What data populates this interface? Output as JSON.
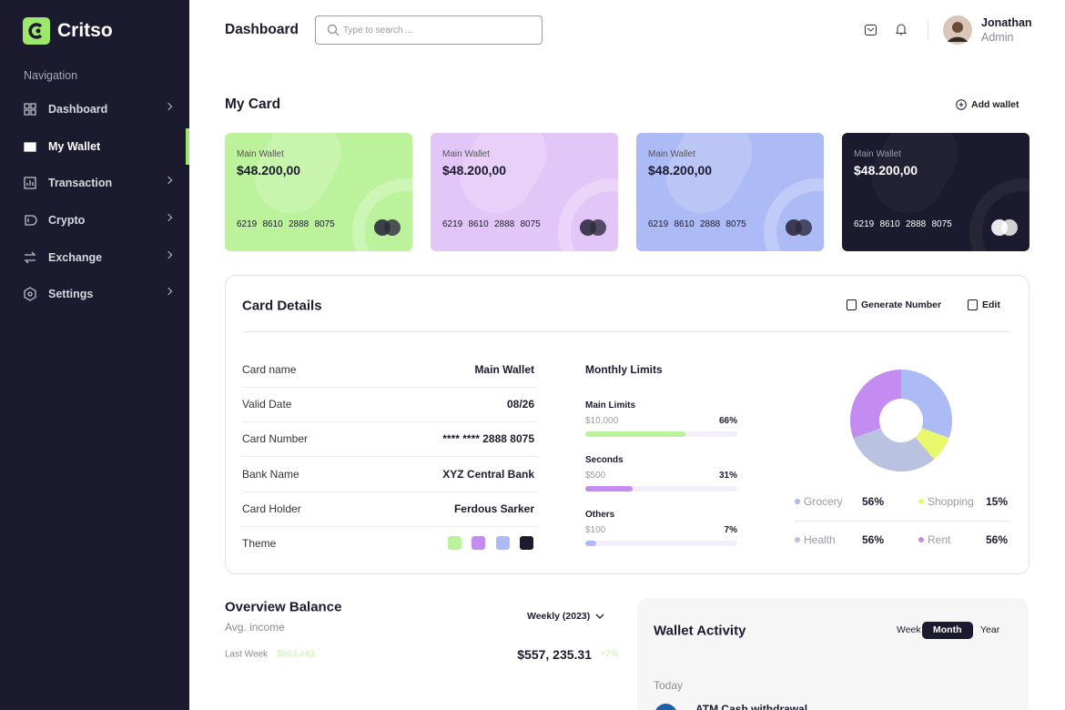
{
  "brand": "Critso",
  "nav": {
    "heading": "Navigation",
    "active": 1,
    "items": [
      "Dashboard",
      "My Wallet",
      "Transaction",
      "Crypto",
      "Exchange",
      "Settings"
    ]
  },
  "header": {
    "title": "Dashboard",
    "search_placeholder": "Type to search ...",
    "user": {
      "name": "Jonathan",
      "role": "Admin"
    }
  },
  "my_card": {
    "title": "My Card",
    "add_wallet": "Add wallet",
    "cards": [
      {
        "label": "Main Wallet",
        "balance": "$48.200,00",
        "number": [
          "6219",
          "8610",
          "2888",
          "8075"
        ],
        "color": "#bcf29c",
        "dark": false
      },
      {
        "label": "Main Wallet",
        "balance": "$48.200,00",
        "number": [
          "6219",
          "8610",
          "2888",
          "8075"
        ],
        "color": "#e3c6f8",
        "dark": false
      },
      {
        "label": "Main Wallet",
        "balance": "$48.200,00",
        "number": [
          "6219",
          "8610",
          "2888",
          "8075"
        ],
        "color": "#acbaf6",
        "dark": false
      },
      {
        "label": "Main Wallet",
        "balance": "$48.200,00",
        "number": [
          "6219",
          "8610",
          "2888",
          "8075"
        ],
        "color": "#1c1a2e",
        "dark": true
      }
    ]
  },
  "card_details": {
    "title": "Card Details",
    "actions": [
      "Generate Number",
      "Edit"
    ],
    "rows": [
      {
        "label": "Card name",
        "value": "Main Wallet"
      },
      {
        "label": "Valid Date",
        "value": "08/26"
      },
      {
        "label": "Card Number",
        "value": "****  ****  2888  8075"
      },
      {
        "label": "Bank Name",
        "value": "XYZ Central Bank"
      },
      {
        "label": "Card Holder",
        "value": "Ferdous Sarker"
      }
    ],
    "theme_label": "Theme",
    "themes": [
      "#bcf29c",
      "#c48cf0",
      "#acbaf6",
      "#1c1a2e"
    ]
  },
  "monthly_limits": {
    "title": "Monthly Limits",
    "items": [
      {
        "name": "Main Limits",
        "amount": "$10,000",
        "percent": 66,
        "percent_label": "66%",
        "color": "#bcf29c"
      },
      {
        "name": "Seconds",
        "amount": "$500",
        "percent": 31,
        "percent_label": "31%",
        "color": "#c48cf0"
      },
      {
        "name": "Others",
        "amount": "$100",
        "percent": 7,
        "percent_label": "7%",
        "color": "#acbaf6"
      }
    ]
  },
  "breakdown": [
    {
      "name": "Grocery",
      "value": 56,
      "label": "56%",
      "color": "#acbaf6"
    },
    {
      "name": "Shopping",
      "value": 15,
      "label": "15%",
      "color": "#e8f76c"
    },
    {
      "name": "Health",
      "value": 56,
      "label": "56%",
      "color": "#b9c2e0"
    },
    {
      "name": "Rent",
      "value": 56,
      "label": "56%",
      "color": "#c48cf0"
    }
  ],
  "overview": {
    "title": "Overview Balance",
    "subtitle": "Avg. income",
    "period": "Weekly (2023)",
    "last_week_label": "Last Week",
    "last_week_value": "$563,443",
    "total": "$557, 235.31",
    "change": "+7%"
  },
  "wallet_activity": {
    "title": "Wallet Activity",
    "tabs": [
      "Week",
      "Month",
      "Year"
    ],
    "active_tab": 1,
    "section": "Today",
    "item": "ATM Cash withdrawal"
  }
}
